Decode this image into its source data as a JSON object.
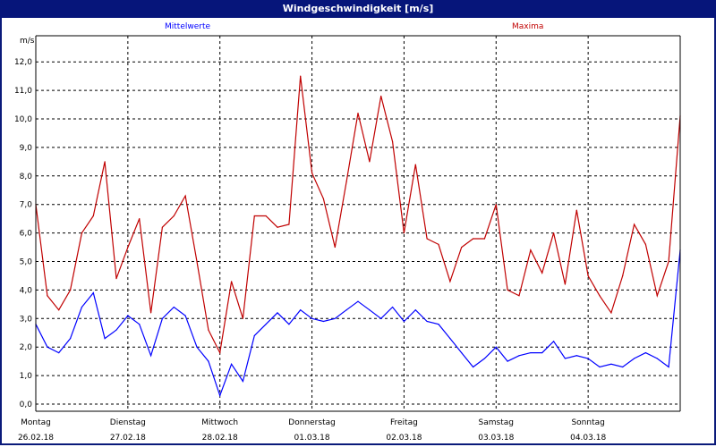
{
  "window": {
    "title": "Windgeschwindigkeit [m/s]"
  },
  "chart_data": {
    "type": "line",
    "title": "Windgeschwindigkeit [m/s]",
    "ylabel": "m/s",
    "ylim": [
      0,
      12.6
    ],
    "yticks": [
      "0,0",
      "1,0",
      "2,0",
      "3,0",
      "4,0",
      "5,0",
      "6,0",
      "7,0",
      "8,0",
      "9,0",
      "10,0",
      "11,0",
      "12,0"
    ],
    "grid": true,
    "legend_placement": "top",
    "xticks": [
      {
        "day": "Montag",
        "date": "26.02.18"
      },
      {
        "day": "Dienstag",
        "date": "27.02.18"
      },
      {
        "day": "Mittwoch",
        "date": "28.02.18"
      },
      {
        "day": "Donnerstag",
        "date": "01.03.18"
      },
      {
        "day": "Freitag",
        "date": "02.03.18"
      },
      {
        "day": "Samstag",
        "date": "03.03.18"
      },
      {
        "day": "Sonntag",
        "date": "04.03.18"
      }
    ],
    "x": [
      "26.02.18 00:00",
      "26.02.18 03:00",
      "26.02.18 06:00",
      "26.02.18 09:00",
      "26.02.18 12:00",
      "26.02.18 15:00",
      "26.02.18 18:00",
      "26.02.18 21:00",
      "27.02.18 00:00",
      "27.02.18 03:00",
      "27.02.18 06:00",
      "27.02.18 09:00",
      "27.02.18 12:00",
      "27.02.18 15:00",
      "27.02.18 18:00",
      "27.02.18 21:00",
      "28.02.18 00:00",
      "28.02.18 03:00",
      "28.02.18 06:00",
      "28.02.18 09:00",
      "28.02.18 12:00",
      "28.02.18 15:00",
      "28.02.18 18:00",
      "28.02.18 21:00",
      "01.03.18 00:00",
      "01.03.18 03:00",
      "01.03.18 06:00",
      "01.03.18 09:00",
      "01.03.18 12:00",
      "01.03.18 15:00",
      "01.03.18 18:00",
      "01.03.18 21:00",
      "02.03.18 00:00",
      "02.03.18 03:00",
      "02.03.18 06:00",
      "02.03.18 09:00",
      "02.03.18 12:00",
      "02.03.18 15:00",
      "02.03.18 18:00",
      "02.03.18 21:00",
      "03.03.18 00:00",
      "03.03.18 03:00",
      "03.03.18 06:00",
      "03.03.18 09:00",
      "03.03.18 12:00",
      "03.03.18 15:00",
      "03.03.18 18:00",
      "03.03.18 21:00",
      "04.03.18 00:00",
      "04.03.18 03:00",
      "04.03.18 06:00",
      "04.03.18 09:00",
      "04.03.18 12:00",
      "04.03.18 15:00",
      "04.03.18 18:00",
      "04.03.18 21:00",
      "05.03.18 00:00"
    ],
    "series": [
      {
        "name": "Mittelwerte",
        "color": "#0000ff",
        "values": [
          2.8,
          2.0,
          1.8,
          2.3,
          3.4,
          3.9,
          2.3,
          2.6,
          3.1,
          2.8,
          1.7,
          3.0,
          3.4,
          3.1,
          2.0,
          1.5,
          0.3,
          1.4,
          0.8,
          2.4,
          2.8,
          3.2,
          2.8,
          3.3,
          3.0,
          2.9,
          3.0,
          3.3,
          3.6,
          3.3,
          3.0,
          3.4,
          2.9,
          3.3,
          2.9,
          2.8,
          2.3,
          1.8,
          1.3,
          1.6,
          2.0,
          1.5,
          1.7,
          1.8,
          1.8,
          2.2,
          1.6,
          1.7,
          1.6,
          1.3,
          1.4,
          1.3,
          1.6,
          1.8,
          1.6,
          1.3,
          5.4
        ]
      },
      {
        "name": "Maxima",
        "color": "#c00000",
        "values": [
          7.0,
          3.8,
          3.3,
          4.0,
          6.0,
          6.6,
          8.5,
          4.4,
          5.5,
          6.5,
          3.2,
          6.2,
          6.6,
          7.3,
          5.0,
          2.6,
          1.8,
          4.3,
          3.0,
          6.6,
          6.6,
          6.2,
          6.3,
          11.5,
          8.1,
          7.2,
          5.5,
          7.8,
          10.2,
          8.5,
          10.8,
          9.2,
          6.0,
          8.4,
          5.8,
          5.6,
          4.3,
          5.5,
          5.8,
          5.8,
          7.0,
          4.0,
          3.8,
          5.4,
          4.6,
          6.0,
          4.2,
          6.8,
          4.5,
          3.8,
          3.2,
          4.5,
          6.3,
          5.6,
          3.8,
          5.0,
          10.1
        ]
      }
    ]
  }
}
